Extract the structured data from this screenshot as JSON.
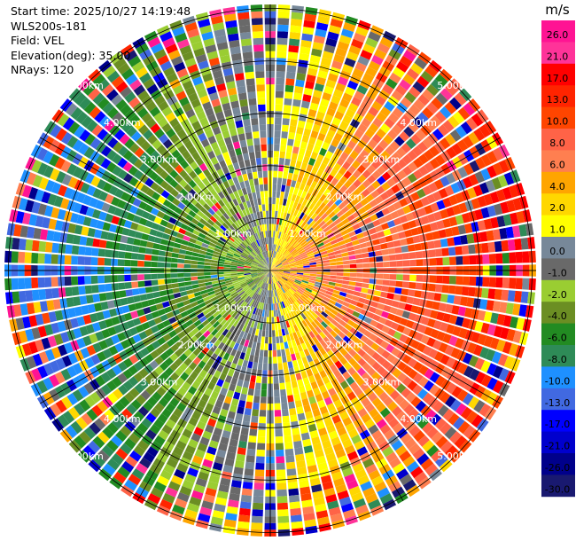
{
  "info": {
    "start_time": "Start time: 2025/10/27 14:19:48",
    "instrument": "WLS200s-181",
    "field": "Field: VEL",
    "elevation": "Elevation(deg): 35.00",
    "nrays": "NRays: 120"
  },
  "chart_data": {
    "type": "heatmap",
    "projection": "polar-ppi",
    "field": "VEL",
    "n_rays": 120,
    "range_rings_km": [
      1,
      2,
      3,
      4,
      5
    ],
    "range_ring_labels": [
      "1.00km",
      "2.00km",
      "3.00km",
      "4.00km",
      "5.00km"
    ],
    "max_range_km": 5,
    "colorbar": {
      "unit": "m/s",
      "ticks": [
        "26.0",
        "21.0",
        "17.0",
        "13.0",
        "10.0",
        "8.0",
        "6.0",
        "4.0",
        "2.0",
        "1.0",
        "0.0",
        "-1.0",
        "-2.0",
        "-4.0",
        "-6.0",
        "-8.0",
        "-10.0",
        "-13.0",
        "-17.0",
        "-21.0",
        "-26.0",
        "-30.0"
      ],
      "colors": [
        "#ff1493",
        "#ff3399",
        "#ff0000",
        "#ff2400",
        "#ff4500",
        "#ff6347",
        "#ff7f50",
        "#ffa500",
        "#ffd700",
        "#ffff00",
        "#778899",
        "#696969",
        "#9acd32",
        "#6b8e23",
        "#228b22",
        "#2e8b57",
        "#1e90ff",
        "#4169e1",
        "#0000ff",
        "#0000cd",
        "#00008b",
        "#191970"
      ]
    }
  }
}
